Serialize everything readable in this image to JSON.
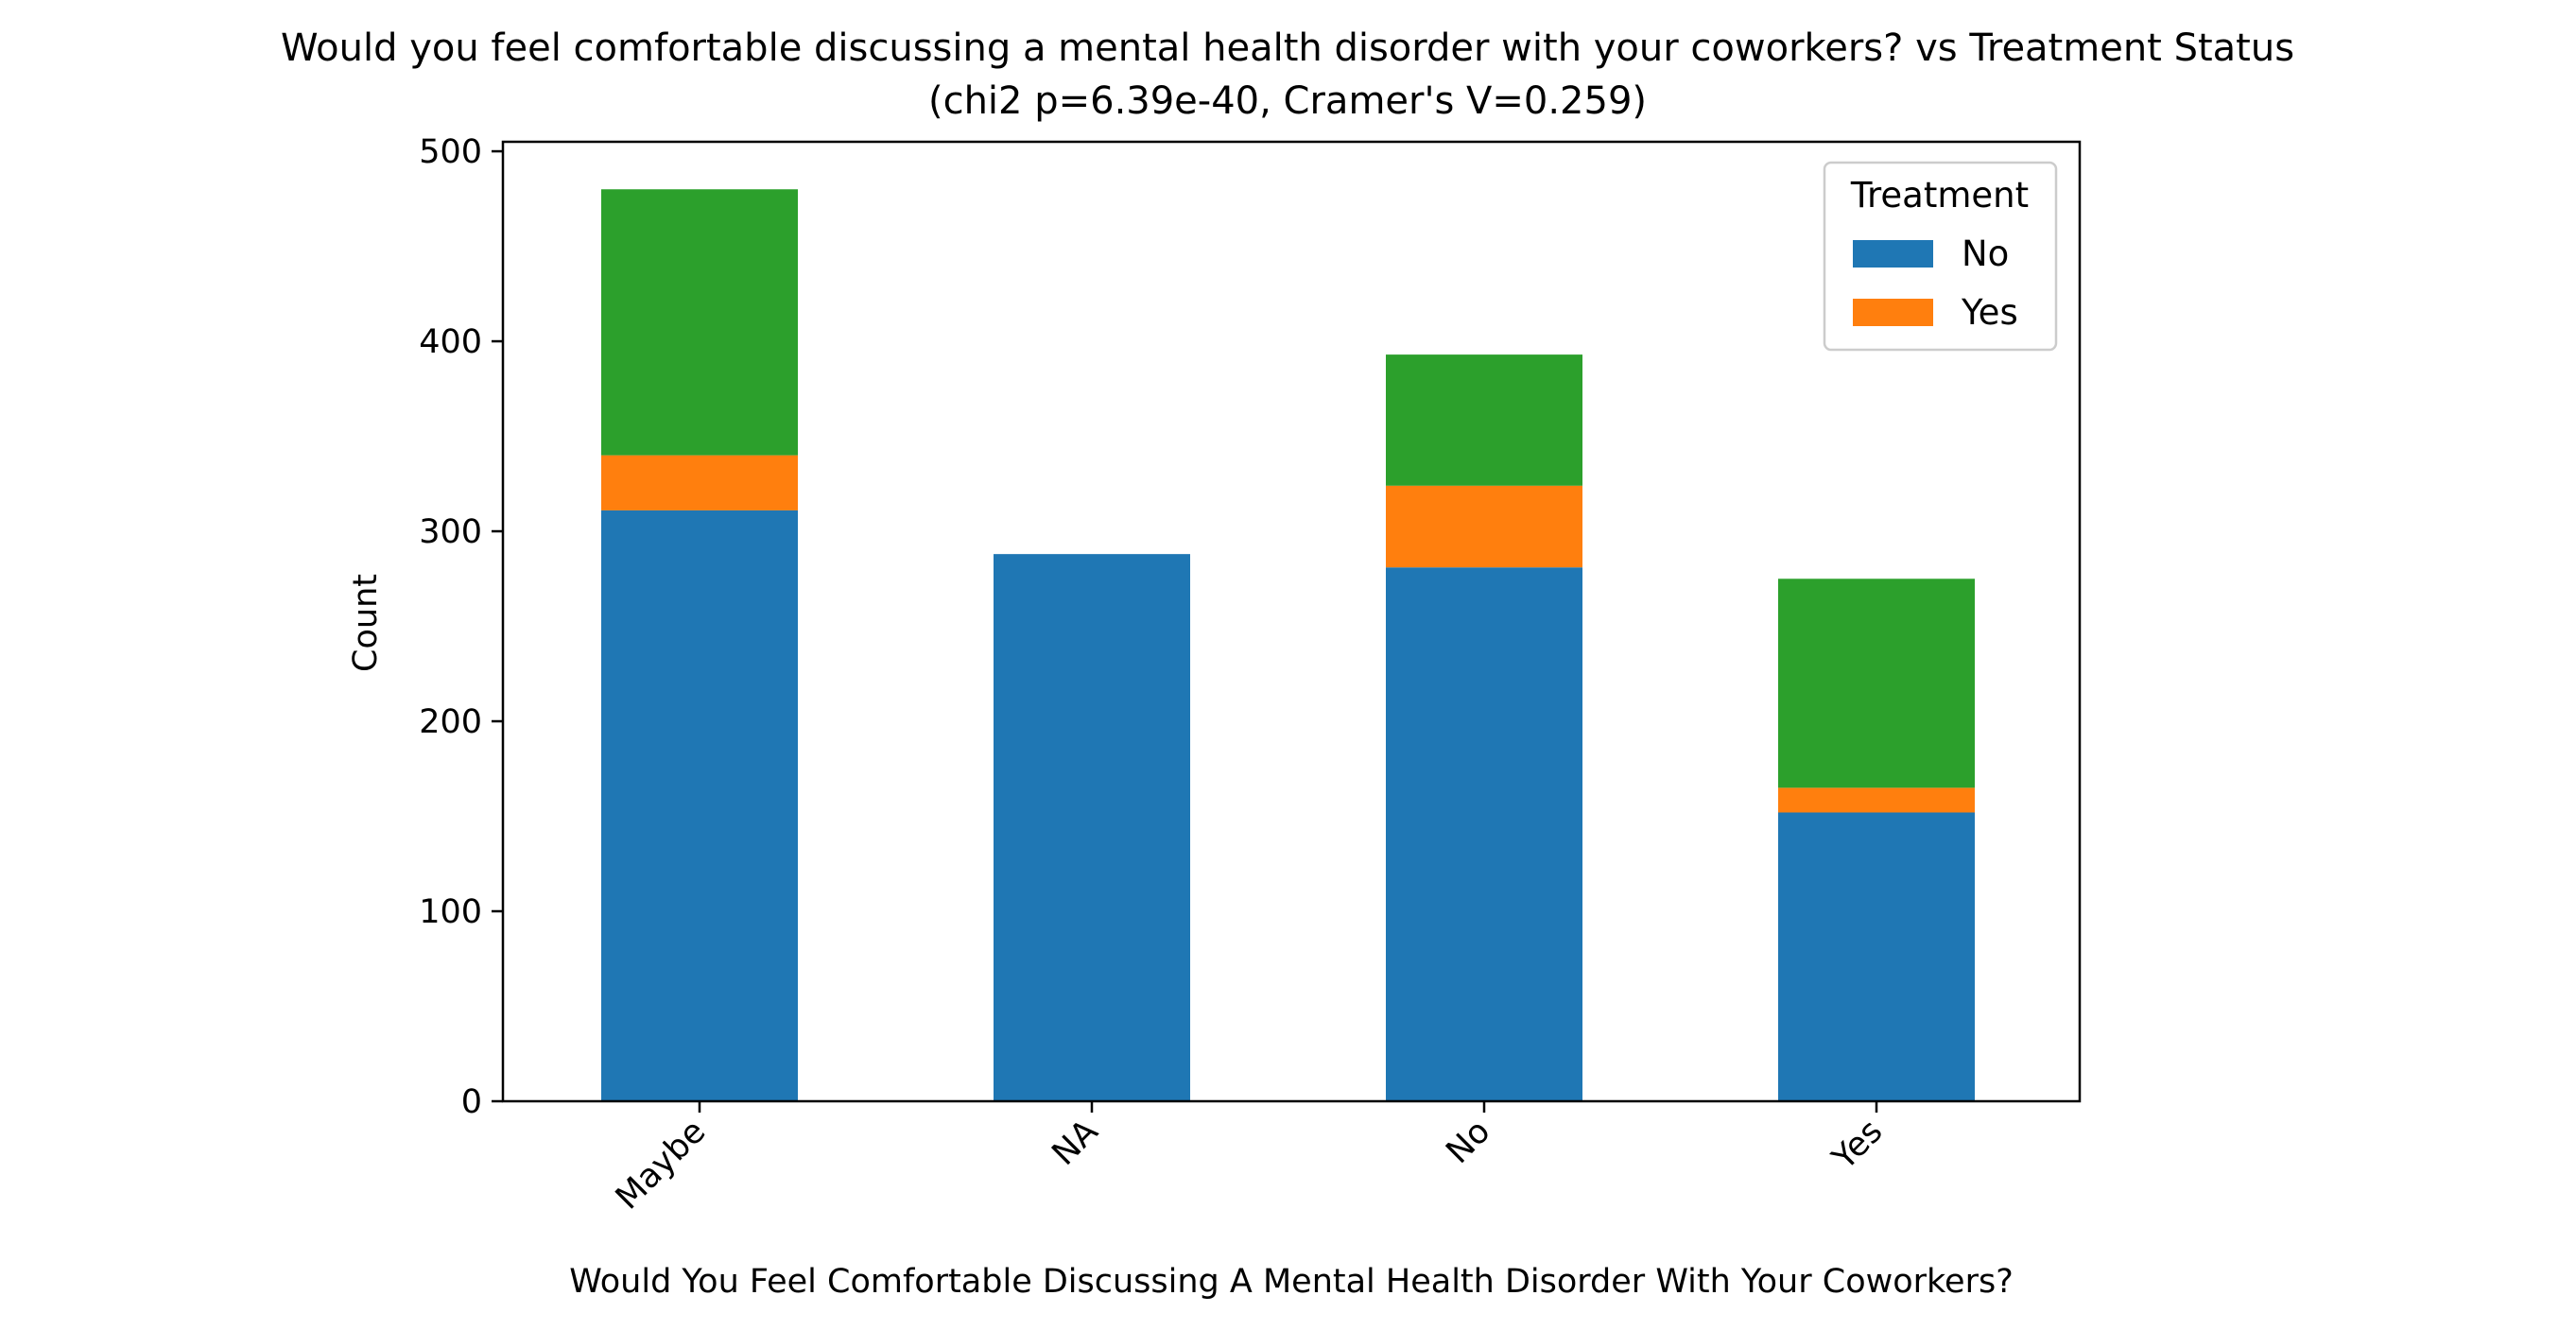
{
  "chart_data": {
    "type": "bar",
    "stacked": true,
    "title": "Would you feel comfortable discussing a mental health disorder with your coworkers? vs Treatment Status",
    "subtitle": "(chi2 p=6.39e-40, Cramer's V=0.259)",
    "xlabel": "Would You Feel Comfortable Discussing A Mental Health Disorder With Your Coworkers?",
    "ylabel": "Count",
    "categories": [
      "Maybe",
      "NA",
      "No",
      "Yes"
    ],
    "ylim": [
      0,
      505
    ],
    "yticks": [
      "0",
      "100",
      "200",
      "300",
      "400",
      "500"
    ],
    "series": [
      {
        "name": "No",
        "color": "#1f77b4",
        "values": [
          311,
          288,
          281,
          152
        ]
      },
      {
        "name": "Yes",
        "color": "#ff7f0e",
        "values": [
          29,
          0,
          43,
          13
        ]
      },
      {
        "name": "",
        "color": "#2ca02c",
        "values": [
          140,
          0,
          69,
          110
        ]
      }
    ],
    "legend": {
      "title": "Treatment",
      "placement": "top-right",
      "entries": [
        "No",
        "Yes"
      ]
    },
    "grid": false
  }
}
